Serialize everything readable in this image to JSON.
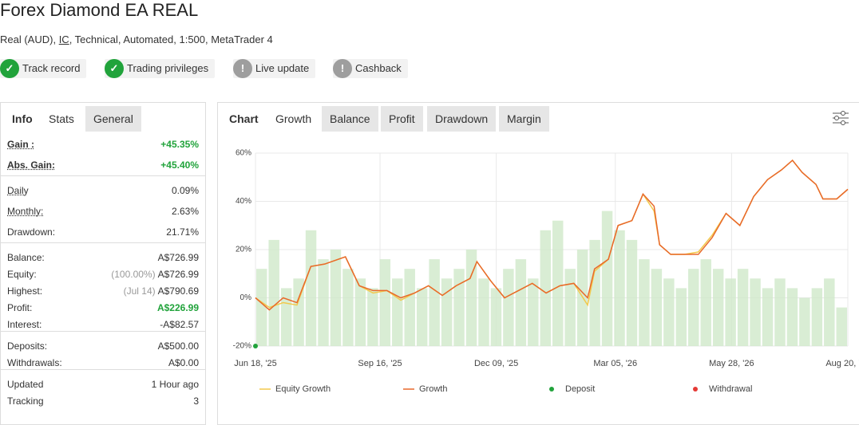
{
  "header": {
    "title": "Forex Diamond EA REAL",
    "subtitle_parts": [
      "Real (AUD), ",
      "IC",
      ", Technical, Automated, 1:500, MetaTrader 4"
    ]
  },
  "badges": [
    {
      "label": "Track record",
      "status": "ok"
    },
    {
      "label": "Trading privileges",
      "status": "ok"
    },
    {
      "label": "Live update",
      "status": "warn"
    },
    {
      "label": "Cashback",
      "status": "warn"
    }
  ],
  "stats_panel": {
    "tabs": [
      "Info",
      "Stats",
      "General"
    ],
    "active_tab": 1,
    "groups": [
      [
        {
          "label": "Gain :",
          "value": "+45.35%",
          "positive": true
        },
        {
          "label": "Abs. Gain:",
          "value": "+45.40%",
          "positive": true
        }
      ],
      [
        {
          "label": "Daily",
          "value": "0.09%"
        },
        {
          "label": "Monthly:",
          "value": "2.63%"
        },
        {
          "label": "Drawdown:",
          "value": "21.71%"
        }
      ],
      [
        {
          "label": "Balance:",
          "value": "A$726.99"
        },
        {
          "label": "Equity:",
          "note": "(100.00%)",
          "value": "A$726.99"
        },
        {
          "label": "Highest:",
          "note": "(Jul 14)",
          "value": "A$790.69"
        },
        {
          "label": "Profit:",
          "value": "A$226.99",
          "positive": true
        },
        {
          "label": "Interest:",
          "value": "-A$82.57"
        }
      ],
      [
        {
          "label": "Deposits:",
          "value": "A$500.00"
        },
        {
          "label": "Withdrawals:",
          "value": "A$0.00"
        }
      ],
      [
        {
          "label": "Updated",
          "value": "1 Hour ago"
        },
        {
          "label": "Tracking",
          "value": "3"
        }
      ]
    ]
  },
  "chart_panel": {
    "label": "Chart",
    "tabs": [
      "Growth",
      "Balance",
      "Profit",
      "Drawdown",
      "Margin"
    ],
    "active_tab": 0
  },
  "chart_data": {
    "type": "line",
    "x": [
      0,
      10,
      20,
      30,
      40,
      50,
      60,
      65,
      75,
      85,
      95,
      105,
      115,
      125,
      135,
      145,
      155,
      160,
      170,
      180,
      190,
      200,
      210,
      220,
      230,
      240,
      245,
      255,
      262,
      272,
      280,
      288,
      292,
      300,
      310,
      320,
      330,
      340,
      350,
      360,
      370,
      380,
      388,
      395,
      405,
      410,
      420,
      428
    ],
    "xlim": [
      0,
      428
    ],
    "xticks": [
      {
        "value": 0,
        "label": "Jun 18, '25"
      },
      {
        "value": 90,
        "label": "Sep 16, '25"
      },
      {
        "value": 174,
        "label": "Dec 09, '25"
      },
      {
        "value": 260,
        "label": "Mar 05, '26"
      },
      {
        "value": 344,
        "label": "May 28, '26"
      },
      {
        "value": 428,
        "label": "Aug 20, '26"
      }
    ],
    "ylim": [
      -20,
      60
    ],
    "yticks": [
      {
        "value": -20,
        "label": "-20%"
      },
      {
        "value": 0,
        "label": "0%"
      },
      {
        "value": 20,
        "label": "20%"
      },
      {
        "value": 40,
        "label": "40%"
      },
      {
        "value": 60,
        "label": "60%"
      }
    ],
    "grid": true,
    "series": [
      {
        "name": "Equity Growth",
        "color": "#f2c94c",
        "values": [
          0,
          -4,
          -2,
          -3,
          13,
          14,
          16,
          17,
          5,
          2,
          3,
          -1,
          2,
          5,
          1,
          5,
          8,
          15,
          7,
          0,
          3,
          6,
          2,
          5,
          6,
          -3,
          11,
          16,
          30,
          32,
          43,
          36,
          22,
          18,
          18,
          19,
          26,
          35,
          30,
          42,
          49,
          53,
          57,
          52,
          47,
          41,
          41,
          45
        ]
      },
      {
        "name": "Growth",
        "color": "#e8692b",
        "values": [
          0,
          -5,
          0,
          -2,
          13,
          14,
          16,
          17,
          5,
          3,
          3,
          0,
          2,
          5,
          1,
          5,
          8,
          15,
          7,
          0,
          3,
          6,
          2,
          5,
          6,
          0,
          12,
          16,
          30,
          32,
          43,
          38,
          22,
          18,
          18,
          18,
          25,
          35,
          30,
          42,
          49,
          53,
          57,
          52,
          47,
          41,
          41,
          45
        ]
      }
    ],
    "deposits": {
      "name": "Deposit",
      "color": "#21a33b",
      "x": [
        0
      ],
      "values": [
        -20
      ]
    },
    "withdrawals": {
      "name": "Withdrawal",
      "color": "#e53935",
      "x": [],
      "values": []
    },
    "activity": [
      40,
      55,
      30,
      35,
      60,
      45,
      50,
      40,
      35,
      30,
      45,
      35,
      40,
      30,
      45,
      35,
      40,
      50,
      35,
      30,
      40,
      45,
      35,
      60,
      65,
      40,
      50,
      55,
      70,
      60,
      55,
      45,
      40,
      35,
      30,
      40,
      45,
      40,
      35,
      40,
      35,
      30,
      35,
      30,
      25,
      30,
      35,
      20
    ]
  }
}
